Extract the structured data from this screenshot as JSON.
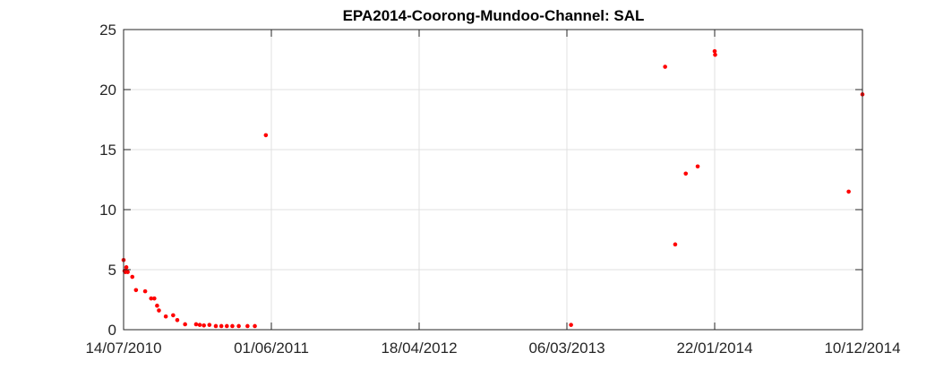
{
  "chart_data": {
    "type": "scatter",
    "title": "EPA2014-Coorong-Mundoo-Channel: SAL",
    "xlabel": "",
    "ylabel": "",
    "x_axis_kind": "date",
    "xlim": [
      "14/07/2010",
      "10/12/2014"
    ],
    "ylim": [
      0,
      25
    ],
    "x_ticks": [
      "14/07/2010",
      "01/06/2011",
      "18/04/2012",
      "06/03/2013",
      "22/01/2014",
      "10/12/2014"
    ],
    "y_ticks": [
      0,
      5,
      10,
      15,
      20,
      25
    ],
    "grid": true,
    "marker_color": "#ff0000",
    "points": [
      {
        "x": "14/07/2010",
        "y": 5.8
      },
      {
        "x": "16/07/2010",
        "y": 4.9
      },
      {
        "x": "18/07/2010",
        "y": 4.8
      },
      {
        "x": "20/07/2010",
        "y": 5.2
      },
      {
        "x": "23/07/2010",
        "y": 4.8
      },
      {
        "x": "02/08/2010",
        "y": 4.4
      },
      {
        "x": "10/08/2010",
        "y": 3.3
      },
      {
        "x": "30/08/2010",
        "y": 3.2
      },
      {
        "x": "12/09/2010",
        "y": 2.6
      },
      {
        "x": "19/09/2010",
        "y": 2.6
      },
      {
        "x": "25/09/2010",
        "y": 2.0
      },
      {
        "x": "29/09/2010",
        "y": 1.6
      },
      {
        "x": "14/10/2010",
        "y": 1.1
      },
      {
        "x": "30/10/2010",
        "y": 1.2
      },
      {
        "x": "08/11/2010",
        "y": 0.8
      },
      {
        "x": "25/11/2010",
        "y": 0.45
      },
      {
        "x": "19/12/2010",
        "y": 0.45
      },
      {
        "x": "27/12/2010",
        "y": 0.4
      },
      {
        "x": "05/01/2011",
        "y": 0.35
      },
      {
        "x": "17/01/2011",
        "y": 0.4
      },
      {
        "x": "31/01/2011",
        "y": 0.3
      },
      {
        "x": "12/02/2011",
        "y": 0.3
      },
      {
        "x": "24/02/2011",
        "y": 0.3
      },
      {
        "x": "08/03/2011",
        "y": 0.3
      },
      {
        "x": "22/03/2011",
        "y": 0.3
      },
      {
        "x": "10/04/2011",
        "y": 0.3
      },
      {
        "x": "26/04/2011",
        "y": 0.3
      },
      {
        "x": "20/05/2011",
        "y": 16.2
      },
      {
        "x": "15/03/2013",
        "y": 0.4
      },
      {
        "x": "06/10/2013",
        "y": 21.9
      },
      {
        "x": "28/10/2013",
        "y": 7.1
      },
      {
        "x": "20/11/2013",
        "y": 13.0
      },
      {
        "x": "16/12/2013",
        "y": 13.6
      },
      {
        "x": "22/01/2014",
        "y": 23.2
      },
      {
        "x": "23/01/2014",
        "y": 22.9
      },
      {
        "x": "10/11/2014",
        "y": 11.5
      },
      {
        "x": "10/12/2014",
        "y": 19.6
      }
    ]
  }
}
